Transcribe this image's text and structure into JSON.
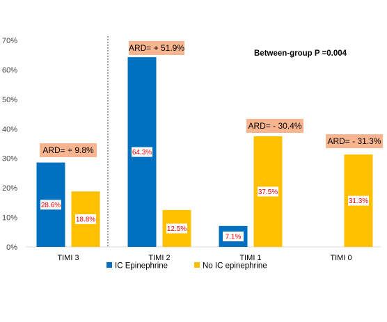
{
  "chart_data": {
    "type": "bar",
    "categories": [
      "TIMI 3",
      "TIMI 2",
      "TIMI 1",
      "TIMI 0"
    ],
    "series": [
      {
        "name": "IC Epinephrine",
        "values": [
          28.6,
          64.3,
          7.1,
          0
        ],
        "labels": [
          "28.6%",
          "64.3%",
          "7.1%",
          null
        ],
        "color": "#0070c0"
      },
      {
        "name": "No IC epinephrine",
        "values": [
          18.8,
          12.5,
          37.5,
          31.3
        ],
        "labels": [
          "18.8%",
          "12.5%",
          "37.5%",
          "31.3%"
        ],
        "color": "#ffc000"
      }
    ],
    "ylim": [
      0,
      70
    ],
    "yticks": [
      "0%",
      "10%",
      "20%",
      "30%",
      "40%",
      "50%",
      "60%",
      "70%"
    ],
    "grid": false,
    "legend_position": "bottom",
    "annotations": {
      "ard": [
        "ARD= + 9.8%",
        "ARD= + 51.9%",
        "ARD= - 30.4%",
        "ARD= - 31.3%"
      ],
      "ard_color": "#f8b58f",
      "pvalue": "Between-group P =0.004"
    }
  }
}
